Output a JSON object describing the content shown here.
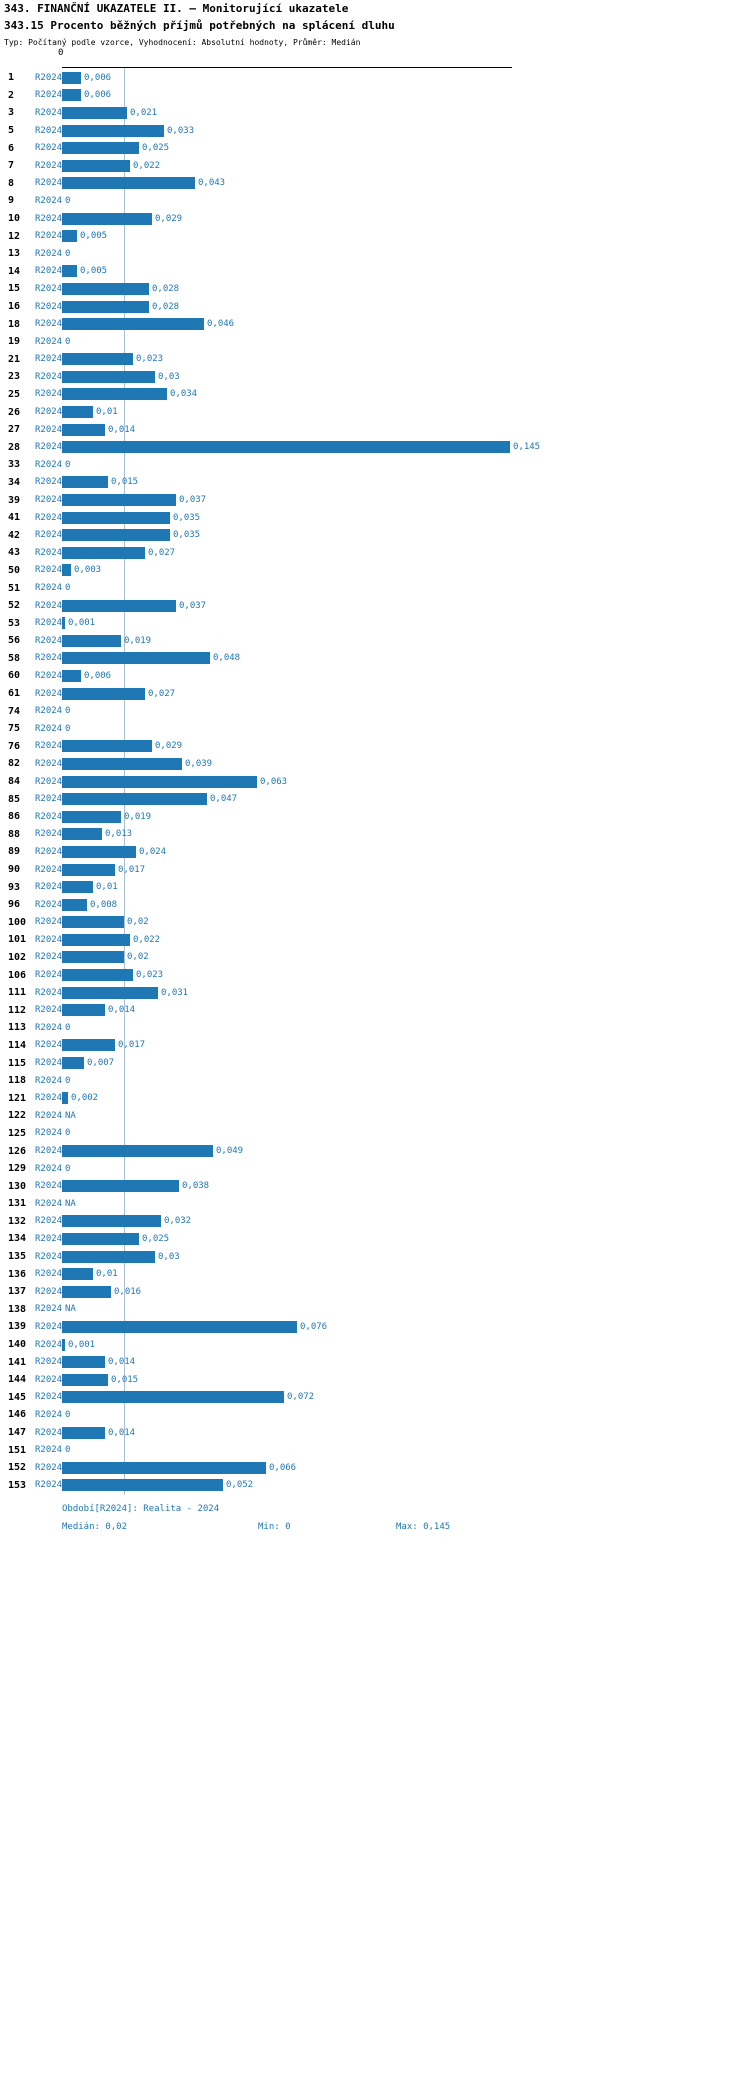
{
  "header": {
    "title": "343. FINANČNÍ UKAZATELE II. — Monitorující ukazatele",
    "subtitle": "343.15 Procento běžných příjmů potřebných na splácení dluhu",
    "meta": "Typ: Počítaný podle vzorce, Vyhodnocení: Absolutní hodnoty, Průměr: Medián"
  },
  "footer": {
    "period": "Období[R2024]: Realita - 2024",
    "median": "Medián: 0,02",
    "min": "Min: 0",
    "max": "Max: 0,145"
  },
  "colors": {
    "bar": "#1f77b4",
    "blue_text": "#1f77b4",
    "median_line": "#a9c0d4",
    "axis": "#000000"
  },
  "chart_data": {
    "type": "bar",
    "orientation": "horizontal",
    "title": "343.15 Procento běžných příjmů potřebných na splácení dluhu",
    "series_name": "R2024",
    "x_axis": {
      "min": 0,
      "max": 0.145,
      "tick_labels": [
        "0"
      ]
    },
    "median": 0.02,
    "min": 0,
    "max": 0.145,
    "legend_position": "none",
    "grid": "median-line-only",
    "rows": [
      {
        "id": "1",
        "period": "R2024",
        "value": 0.006,
        "label": "0,006"
      },
      {
        "id": "2",
        "period": "R2024",
        "value": 0.006,
        "label": "0,006"
      },
      {
        "id": "3",
        "period": "R2024",
        "value": 0.021,
        "label": "0,021"
      },
      {
        "id": "5",
        "period": "R2024",
        "value": 0.033,
        "label": "0,033"
      },
      {
        "id": "6",
        "period": "R2024",
        "value": 0.025,
        "label": "0,025"
      },
      {
        "id": "7",
        "period": "R2024",
        "value": 0.022,
        "label": "0,022"
      },
      {
        "id": "8",
        "period": "R2024",
        "value": 0.043,
        "label": "0,043"
      },
      {
        "id": "9",
        "period": "R2024",
        "value": 0,
        "label": "0"
      },
      {
        "id": "10",
        "period": "R2024",
        "value": 0.029,
        "label": "0,029"
      },
      {
        "id": "12",
        "period": "R2024",
        "value": 0.005,
        "label": "0,005"
      },
      {
        "id": "13",
        "period": "R2024",
        "value": 0,
        "label": "0"
      },
      {
        "id": "14",
        "period": "R2024",
        "value": 0.005,
        "label": "0,005"
      },
      {
        "id": "15",
        "period": "R2024",
        "value": 0.028,
        "label": "0,028"
      },
      {
        "id": "16",
        "period": "R2024",
        "value": 0.028,
        "label": "0,028"
      },
      {
        "id": "18",
        "period": "R2024",
        "value": 0.046,
        "label": "0,046"
      },
      {
        "id": "19",
        "period": "R2024",
        "value": 0,
        "label": "0"
      },
      {
        "id": "21",
        "period": "R2024",
        "value": 0.023,
        "label": "0,023"
      },
      {
        "id": "23",
        "period": "R2024",
        "value": 0.03,
        "label": "0,03"
      },
      {
        "id": "25",
        "period": "R2024",
        "value": 0.034,
        "label": "0,034"
      },
      {
        "id": "26",
        "period": "R2024",
        "value": 0.01,
        "label": "0,01"
      },
      {
        "id": "27",
        "period": "R2024",
        "value": 0.014,
        "label": "0,014"
      },
      {
        "id": "28",
        "period": "R2024",
        "value": 0.145,
        "label": "0,145"
      },
      {
        "id": "33",
        "period": "R2024",
        "value": 0,
        "label": "0"
      },
      {
        "id": "34",
        "period": "R2024",
        "value": 0.015,
        "label": "0,015"
      },
      {
        "id": "39",
        "period": "R2024",
        "value": 0.037,
        "label": "0,037"
      },
      {
        "id": "41",
        "period": "R2024",
        "value": 0.035,
        "label": "0,035"
      },
      {
        "id": "42",
        "period": "R2024",
        "value": 0.035,
        "label": "0,035"
      },
      {
        "id": "43",
        "period": "R2024",
        "value": 0.027,
        "label": "0,027"
      },
      {
        "id": "50",
        "period": "R2024",
        "value": 0.003,
        "label": "0,003"
      },
      {
        "id": "51",
        "period": "R2024",
        "value": 0,
        "label": "0"
      },
      {
        "id": "52",
        "period": "R2024",
        "value": 0.037,
        "label": "0,037"
      },
      {
        "id": "53",
        "period": "R2024",
        "value": 0.001,
        "label": "0,001"
      },
      {
        "id": "56",
        "period": "R2024",
        "value": 0.019,
        "label": "0,019"
      },
      {
        "id": "58",
        "period": "R2024",
        "value": 0.048,
        "label": "0,048"
      },
      {
        "id": "60",
        "period": "R2024",
        "value": 0.006,
        "label": "0,006"
      },
      {
        "id": "61",
        "period": "R2024",
        "value": 0.027,
        "label": "0,027"
      },
      {
        "id": "74",
        "period": "R2024",
        "value": 0,
        "label": "0"
      },
      {
        "id": "75",
        "period": "R2024",
        "value": 0,
        "label": "0"
      },
      {
        "id": "76",
        "period": "R2024",
        "value": 0.029,
        "label": "0,029"
      },
      {
        "id": "82",
        "period": "R2024",
        "value": 0.039,
        "label": "0,039"
      },
      {
        "id": "84",
        "period": "R2024",
        "value": 0.063,
        "label": "0,063"
      },
      {
        "id": "85",
        "period": "R2024",
        "value": 0.047,
        "label": "0,047"
      },
      {
        "id": "86",
        "period": "R2024",
        "value": 0.019,
        "label": "0,019"
      },
      {
        "id": "88",
        "period": "R2024",
        "value": 0.013,
        "label": "0,013"
      },
      {
        "id": "89",
        "period": "R2024",
        "value": 0.024,
        "label": "0,024"
      },
      {
        "id": "90",
        "period": "R2024",
        "value": 0.017,
        "label": "0,017"
      },
      {
        "id": "93",
        "period": "R2024",
        "value": 0.01,
        "label": "0,01"
      },
      {
        "id": "96",
        "period": "R2024",
        "value": 0.008,
        "label": "0,008"
      },
      {
        "id": "100",
        "period": "R2024",
        "value": 0.02,
        "label": "0,02"
      },
      {
        "id": "101",
        "period": "R2024",
        "value": 0.022,
        "label": "0,022"
      },
      {
        "id": "102",
        "period": "R2024",
        "value": 0.02,
        "label": "0,02"
      },
      {
        "id": "106",
        "period": "R2024",
        "value": 0.023,
        "label": "0,023"
      },
      {
        "id": "111",
        "period": "R2024",
        "value": 0.031,
        "label": "0,031"
      },
      {
        "id": "112",
        "period": "R2024",
        "value": 0.014,
        "label": "0,014"
      },
      {
        "id": "113",
        "period": "R2024",
        "value": 0,
        "label": "0"
      },
      {
        "id": "114",
        "period": "R2024",
        "value": 0.017,
        "label": "0,017"
      },
      {
        "id": "115",
        "period": "R2024",
        "value": 0.007,
        "label": "0,007"
      },
      {
        "id": "118",
        "period": "R2024",
        "value": 0,
        "label": "0"
      },
      {
        "id": "121",
        "period": "R2024",
        "value": 0.002,
        "label": "0,002"
      },
      {
        "id": "122",
        "period": "R2024",
        "value": null,
        "label": "NA"
      },
      {
        "id": "125",
        "period": "R2024",
        "value": 0,
        "label": "0"
      },
      {
        "id": "126",
        "period": "R2024",
        "value": 0.049,
        "label": "0,049"
      },
      {
        "id": "129",
        "period": "R2024",
        "value": 0,
        "label": "0"
      },
      {
        "id": "130",
        "period": "R2024",
        "value": 0.038,
        "label": "0,038"
      },
      {
        "id": "131",
        "period": "R2024",
        "value": null,
        "label": "NA"
      },
      {
        "id": "132",
        "period": "R2024",
        "value": 0.032,
        "label": "0,032"
      },
      {
        "id": "134",
        "period": "R2024",
        "value": 0.025,
        "label": "0,025"
      },
      {
        "id": "135",
        "period": "R2024",
        "value": 0.03,
        "label": "0,03"
      },
      {
        "id": "136",
        "period": "R2024",
        "value": 0.01,
        "label": "0,01"
      },
      {
        "id": "137",
        "period": "R2024",
        "value": 0.016,
        "label": "0,016"
      },
      {
        "id": "138",
        "period": "R2024",
        "value": null,
        "label": "NA"
      },
      {
        "id": "139",
        "period": "R2024",
        "value": 0.076,
        "label": "0,076"
      },
      {
        "id": "140",
        "period": "R2024",
        "value": 0.001,
        "label": "0,001"
      },
      {
        "id": "141",
        "period": "R2024",
        "value": 0.014,
        "label": "0,014"
      },
      {
        "id": "144",
        "period": "R2024",
        "value": 0.015,
        "label": "0,015"
      },
      {
        "id": "145",
        "period": "R2024",
        "value": 0.072,
        "label": "0,072"
      },
      {
        "id": "146",
        "period": "R2024",
        "value": 0,
        "label": "0"
      },
      {
        "id": "147",
        "period": "R2024",
        "value": 0.014,
        "label": "0,014"
      },
      {
        "id": "151",
        "period": "R2024",
        "value": 0,
        "label": "0"
      },
      {
        "id": "152",
        "period": "R2024",
        "value": 0.066,
        "label": "0,066"
      },
      {
        "id": "153",
        "period": "R2024",
        "value": 0.052,
        "label": "0,052"
      }
    ]
  }
}
